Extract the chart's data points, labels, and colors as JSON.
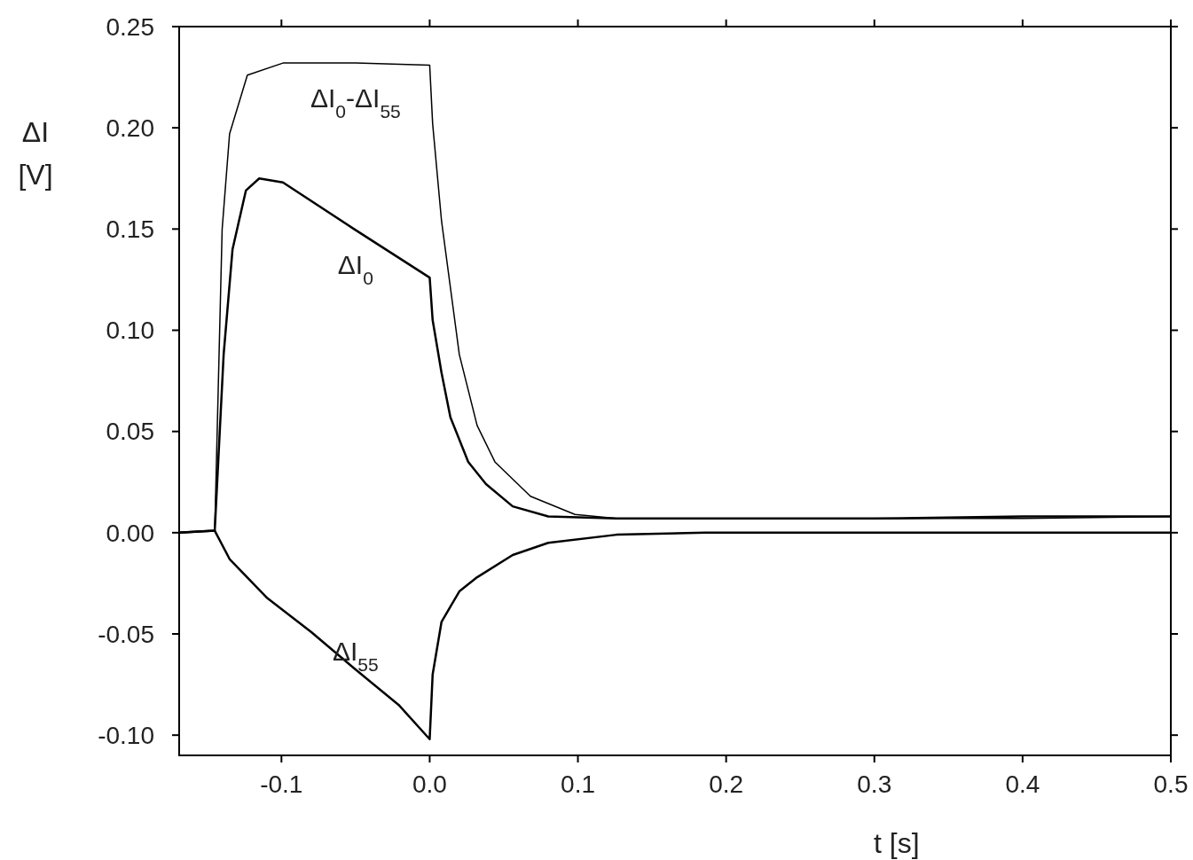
{
  "chart_data": {
    "type": "line",
    "xlabel": "t [s]",
    "ylabel": "ΔI [V]",
    "xlim": [
      -0.169,
      0.5
    ],
    "ylim": [
      -0.11,
      0.25
    ],
    "xticks": [
      -0.1,
      {
        "value": 0,
        "label": "0.0"
      },
      0.1,
      0.2,
      0.3,
      0.4,
      0.5
    ],
    "yticks": [
      {
        "value": -0.1,
        "label": "-0.10"
      },
      {
        "value": -0.05,
        "label": "-0.05"
      },
      {
        "value": 0,
        "label": "0.00"
      },
      {
        "value": 0.05,
        "label": "0.05"
      },
      {
        "value": 0.1,
        "label": "0.10"
      },
      {
        "value": 0.15,
        "label": "0.15"
      },
      {
        "value": 0.2,
        "label": "0.20"
      },
      {
        "value": 0.25,
        "label": "0.25"
      }
    ],
    "grid": false,
    "marker": "none",
    "line_style": "solid",
    "series": [
      {
        "name": "ΔI$_{0}$-ΔI$_{55}$",
        "color": "#000000",
        "x": [
          -0.169,
          -0.145,
          -0.14,
          -0.135,
          -0.123,
          -0.099,
          -0.05,
          0,
          0.002,
          0.008,
          0.02,
          0.032,
          0.044,
          0.068,
          0.098,
          0.126,
          0.2,
          0.3,
          0.4,
          0.5
        ],
        "values": [
          0,
          0.001,
          0.15,
          0.197,
          0.226,
          0.232,
          0.232,
          0.231,
          0.202,
          0.154,
          0.088,
          0.053,
          0.035,
          0.018,
          0.009,
          0.007,
          0.007,
          0.007,
          0.007,
          0.008
        ]
      },
      {
        "name": "ΔI$_{0}$",
        "color": "#000000",
        "x": [
          -0.169,
          -0.145,
          -0.139,
          -0.133,
          -0.124,
          -0.115,
          -0.099,
          -0.051,
          0,
          0.002,
          0.008,
          0.014,
          0.026,
          0.038,
          0.056,
          0.08,
          0.126,
          0.2,
          0.3,
          0.4,
          0.5
        ],
        "values": [
          0,
          0.001,
          0.088,
          0.14,
          0.169,
          0.175,
          0.173,
          0.15,
          0.126,
          0.105,
          0.079,
          0.057,
          0.035,
          0.024,
          0.013,
          0.008,
          0.007,
          0.007,
          0.007,
          0.008,
          0.008
        ]
      },
      {
        "name": "ΔI$_{55}$",
        "color": "#000000",
        "x": [
          -0.169,
          -0.145,
          -0.135,
          -0.11,
          -0.08,
          -0.051,
          -0.021,
          0,
          0.002,
          0.008,
          0.02,
          0.032,
          0.056,
          0.08,
          0.126,
          0.186,
          0.3,
          0.4,
          0.5
        ],
        "values": [
          0,
          0.001,
          -0.013,
          -0.032,
          -0.049,
          -0.067,
          -0.085,
          -0.102,
          -0.07,
          -0.044,
          -0.029,
          -0.022,
          -0.011,
          -0.005,
          -0.001,
          0,
          0,
          0,
          0
        ]
      }
    ]
  }
}
